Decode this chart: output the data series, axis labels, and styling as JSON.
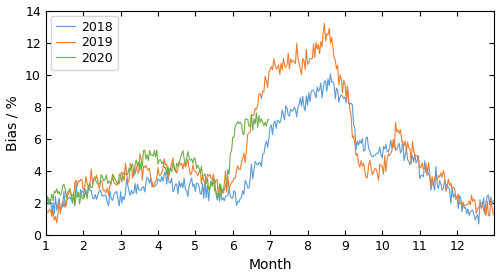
{
  "xlabel": "Month",
  "ylabel": "Bias / %",
  "ylim": [
    0,
    14
  ],
  "xlim": [
    1,
    13
  ],
  "yticks": [
    0,
    2,
    4,
    6,
    8,
    10,
    12,
    14
  ],
  "xticks": [
    1,
    2,
    3,
    4,
    5,
    6,
    7,
    8,
    9,
    10,
    11,
    12
  ],
  "colors": {
    "2018": "#5b9bd5",
    "2019": "#ed7d31",
    "2020": "#70ad47"
  },
  "linewidth": 0.8,
  "figsize": [
    5.0,
    2.78
  ],
  "dpi": 100,
  "noise_seed": 77
}
